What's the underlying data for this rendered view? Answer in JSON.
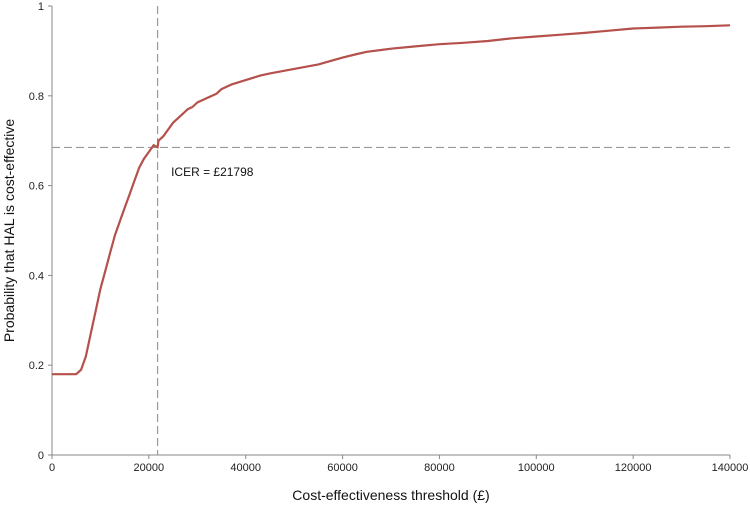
{
  "chart_data": {
    "type": "line",
    "title": "",
    "xlabel": "Cost-effectiveness threshold (£)",
    "ylabel": "Probability that HAL is cost-effective",
    "xlim": [
      0,
      140000
    ],
    "ylim": [
      0,
      1
    ],
    "x_ticks": [
      0,
      20000,
      40000,
      60000,
      80000,
      100000,
      120000,
      140000
    ],
    "y_ticks": [
      0,
      0.2,
      0.4,
      0.6,
      0.8,
      1
    ],
    "grid": false,
    "legend": "none",
    "series": [
      {
        "color": "#b5504b",
        "x": [
          0,
          2000,
          4000,
          5000,
          6000,
          7000,
          8000,
          9000,
          10000,
          11000,
          12000,
          13000,
          14000,
          15000,
          16000,
          17000,
          18000,
          19000,
          20000,
          21000,
          21798,
          22000,
          23000,
          24000,
          25000,
          26000,
          27000,
          28000,
          29000,
          30000,
          32000,
          34000,
          35000,
          37000,
          40000,
          43000,
          45000,
          50000,
          55000,
          60000,
          63000,
          65000,
          70000,
          75000,
          80000,
          85000,
          90000,
          95000,
          100000,
          105000,
          110000,
          115000,
          120000,
          125000,
          130000,
          135000,
          140000
        ],
        "y": [
          0.18,
          0.18,
          0.18,
          0.18,
          0.19,
          0.22,
          0.27,
          0.32,
          0.37,
          0.41,
          0.45,
          0.49,
          0.52,
          0.55,
          0.58,
          0.61,
          0.64,
          0.66,
          0.675,
          0.69,
          0.685,
          0.7,
          0.71,
          0.725,
          0.74,
          0.75,
          0.76,
          0.77,
          0.775,
          0.785,
          0.795,
          0.805,
          0.815,
          0.825,
          0.835,
          0.845,
          0.85,
          0.86,
          0.87,
          0.885,
          0.893,
          0.898,
          0.905,
          0.91,
          0.915,
          0.918,
          0.922,
          0.928,
          0.932,
          0.936,
          0.94,
          0.945,
          0.95,
          0.952,
          0.954,
          0.955,
          0.957
        ]
      }
    ],
    "reference_lines": {
      "vertical_x": 21798,
      "horizontal_y": 0.685,
      "color": "#999999"
    },
    "annotation": {
      "text": "ICER = £21798",
      "x": 25000,
      "y": 0.63
    }
  }
}
